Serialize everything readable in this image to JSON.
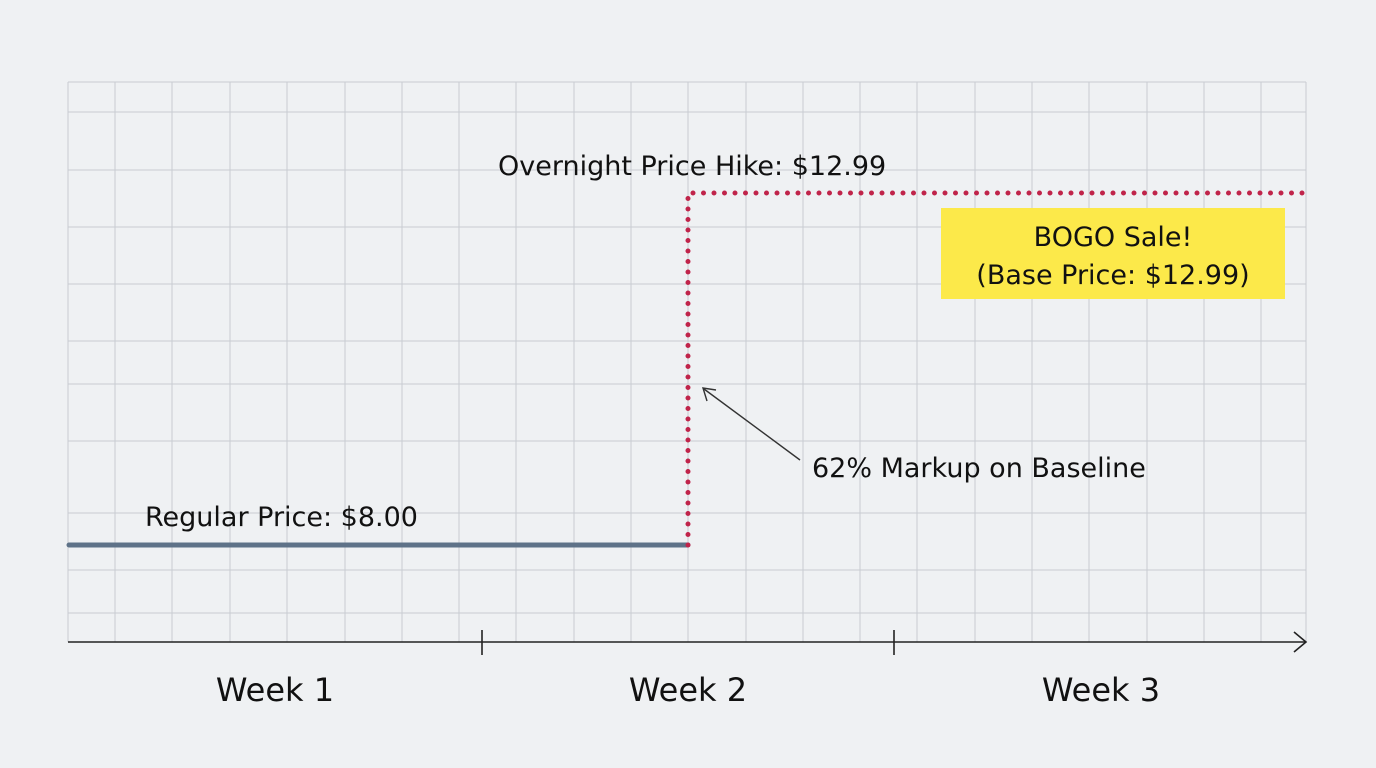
{
  "chart_data": {
    "type": "line",
    "x_categories": [
      "Week 1",
      "Week 2",
      "Week 3"
    ],
    "series": [
      {
        "style": "solid",
        "color": "#5e7288",
        "points": [
          {
            "x": "Week 1 start",
            "y": 8.0
          },
          {
            "x": "Week 2",
            "y": 8.0
          }
        ]
      },
      {
        "style": "dotted",
        "color": "#c0244a",
        "points": [
          {
            "x": "Week 2",
            "y": 8.0
          },
          {
            "x": "Week 2",
            "y": 12.99
          },
          {
            "x": "Week 3 end",
            "y": 12.99
          }
        ]
      }
    ],
    "annotations": {
      "regular_price": "Regular Price: $8.00",
      "price_hike": "Overnight Price Hike: $12.99",
      "markup": "62% Markup on Baseline",
      "bogo_line1": "BOGO Sale!",
      "bogo_line2": "(Base Price: $12.99)"
    },
    "callout_color": "#fce94a",
    "grid": true,
    "x_axis_arrow": true
  }
}
